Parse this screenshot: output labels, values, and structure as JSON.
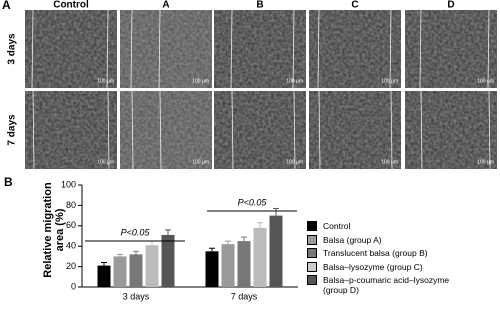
{
  "panel_a": {
    "label": "A",
    "columns": [
      "Control",
      "A",
      "B",
      "C",
      "D"
    ],
    "rows": [
      "3 days",
      "7 days"
    ],
    "scale_bar": "100 µm"
  },
  "chart_data": {
    "type": "bar",
    "panel_label": "B",
    "y_label": "Relative migration area (%)",
    "categories": [
      "3 days",
      "7 days"
    ],
    "series": [
      {
        "name": "Control",
        "color": "#000000",
        "values": [
          21,
          35
        ],
        "errors": [
          3,
          3
        ]
      },
      {
        "name": "Balsa (group A)",
        "color": "#999999",
        "values": [
          30,
          42
        ],
        "errors": [
          2,
          3
        ]
      },
      {
        "name": "Translucent balsa (group B)",
        "color": "#777777",
        "values": [
          32,
          45
        ],
        "errors": [
          3,
          4
        ]
      },
      {
        "name": "Balsa–lysozyme (group C)",
        "color": "#cccccc",
        "values": [
          41,
          58
        ],
        "errors": [
          4,
          5
        ]
      },
      {
        "name": "Balsa–p-coumaric acid–lysozyme (group D)",
        "color": "#555555",
        "values": [
          51,
          70
        ],
        "errors": [
          5,
          7
        ]
      }
    ],
    "ylim": [
      0,
      100
    ],
    "yticks": [
      0,
      20,
      40,
      60,
      80,
      100
    ],
    "annotations": [
      "P<0.05",
      "P<0.05"
    ]
  }
}
